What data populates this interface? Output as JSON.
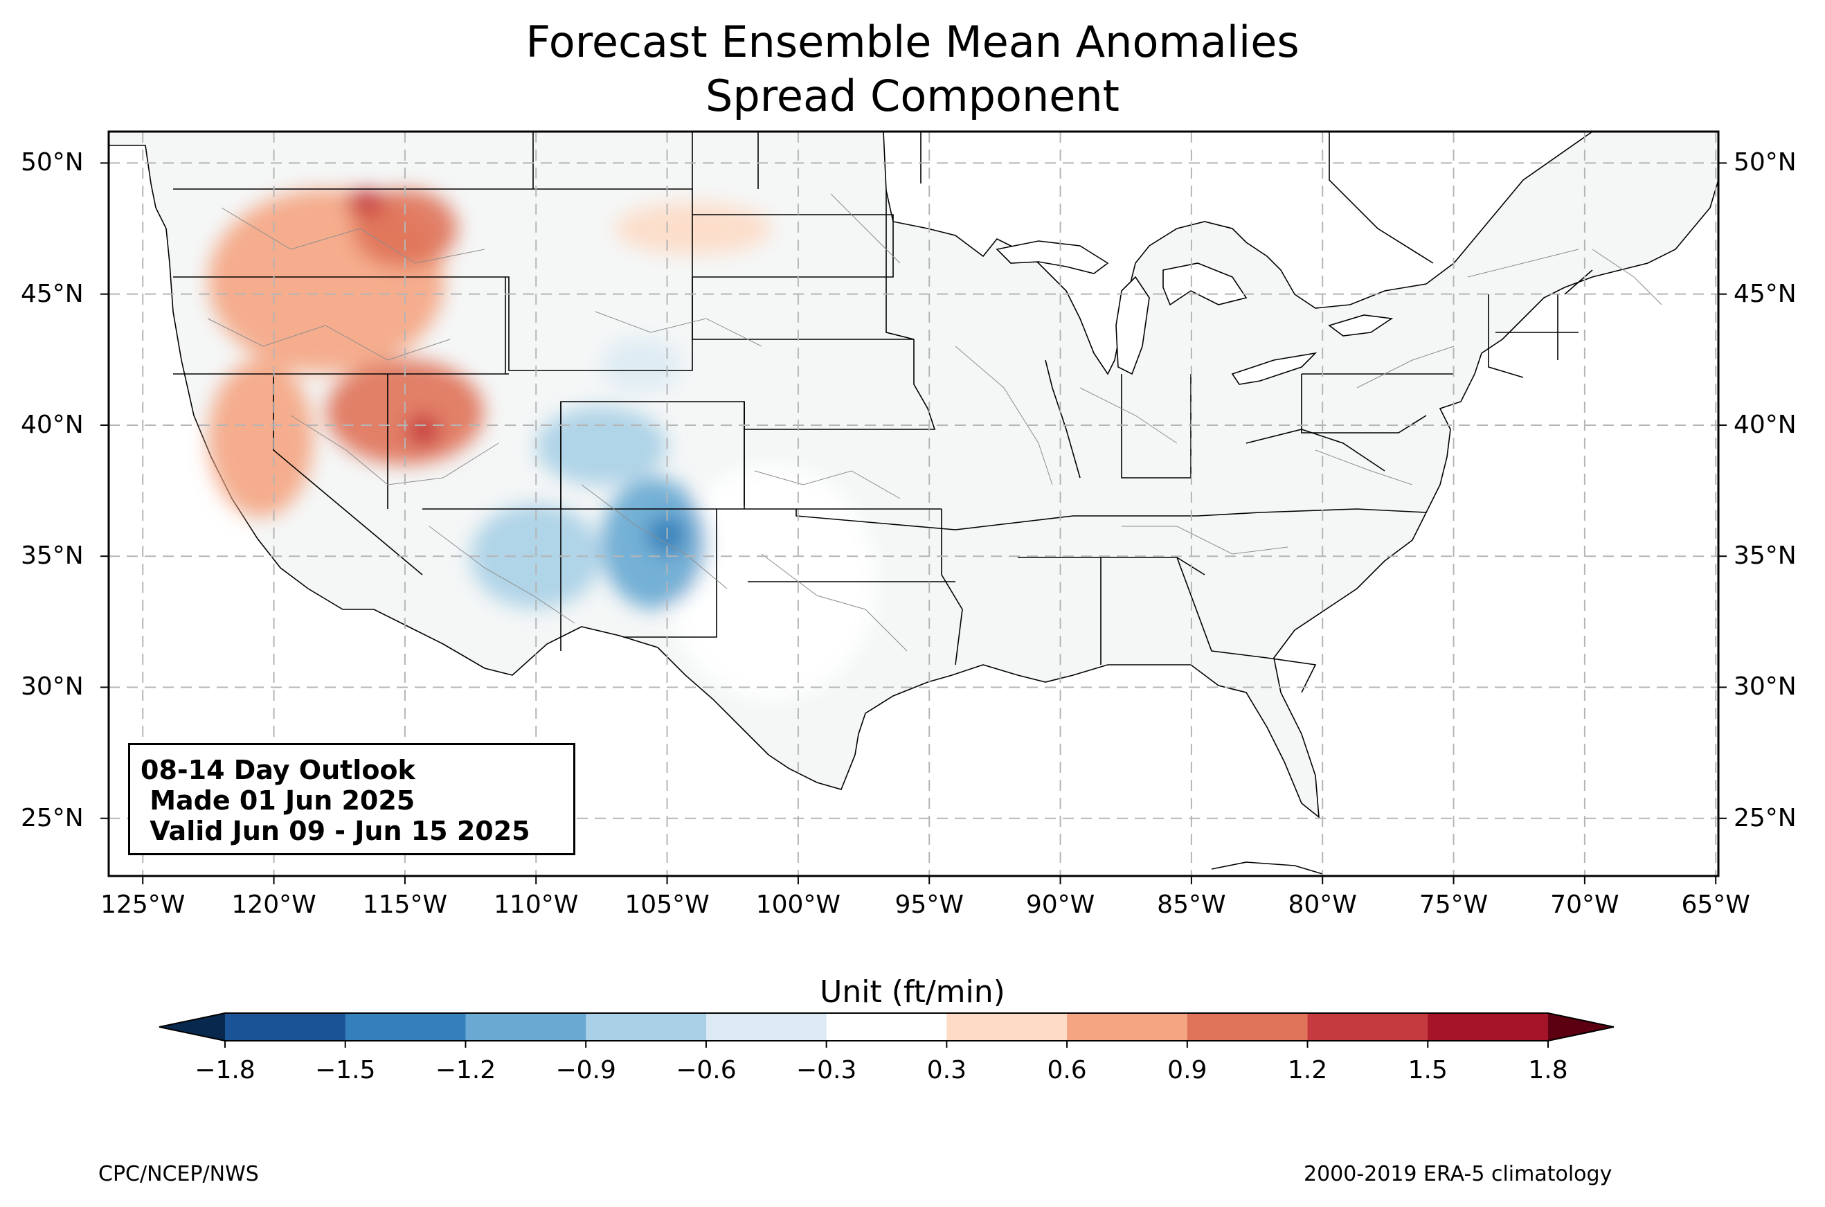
{
  "title": {
    "line1": "Forecast Ensemble Mean Anomalies",
    "line2": "Spread Component"
  },
  "map": {
    "extent_lon": [
      -126.3,
      -64.9
    ],
    "extent_lat": [
      22.8,
      51.2
    ],
    "lat_ticks": [
      "50°N",
      "45°N",
      "40°N",
      "35°N",
      "30°N",
      "25°N"
    ],
    "lat_values": [
      50,
      45,
      40,
      35,
      30,
      25
    ],
    "lon_ticks": [
      "125°W",
      "120°W",
      "115°W",
      "110°W",
      "105°W",
      "100°W",
      "95°W",
      "90°W",
      "85°W",
      "80°W",
      "75°W",
      "70°W",
      "65°W"
    ],
    "lon_values": [
      -125,
      -120,
      -115,
      -110,
      -105,
      -100,
      -95,
      -90,
      -85,
      -80,
      -75,
      -70,
      -65
    ],
    "gridlines": true,
    "anomaly_regions": [
      {
        "name": "pacific-northwest-positive",
        "level": 0.6,
        "lon": -118,
        "lat": 45.5,
        "lon_span": 9,
        "lat_span": 7
      },
      {
        "name": "idaho-montana-positive",
        "level": 0.9,
        "lon": -115,
        "lat": 47.5,
        "lon_span": 4,
        "lat_span": 3
      },
      {
        "name": "montana-max-positive",
        "level": 1.2,
        "lon": -116.5,
        "lat": 48.5,
        "lon_span": 1.5,
        "lat_span": 1
      },
      {
        "name": "nevada-utah-positive",
        "level": 0.9,
        "lon": -115,
        "lat": 40.5,
        "lon_span": 6,
        "lat_span": 4
      },
      {
        "name": "utah-max-positive",
        "level": 1.2,
        "lon": -114.3,
        "lat": 39.8,
        "lon_span": 1.2,
        "lat_span": 1.2
      },
      {
        "name": "california-positive",
        "level": 0.6,
        "lon": -120.5,
        "lat": 39.5,
        "lon_span": 4,
        "lat_span": 6
      },
      {
        "name": "dakotas-positive",
        "level": 0.3,
        "lon": -104,
        "lat": 47.5,
        "lon_span": 6,
        "lat_span": 2
      },
      {
        "name": "wyoming-negative",
        "level": -0.6,
        "lon": -106,
        "lat": 42.3,
        "lon_span": 3,
        "lat_span": 2
      },
      {
        "name": "colorado-utah-negative",
        "level": -0.9,
        "lon": -107.5,
        "lat": 39.2,
        "lon_span": 5,
        "lat_span": 3
      },
      {
        "name": "arizona-negative",
        "level": -0.9,
        "lon": -110,
        "lat": 35,
        "lon_span": 5,
        "lat_span": 4
      },
      {
        "name": "new-mexico-negative",
        "level": -1.2,
        "lon": -105.5,
        "lat": 35.5,
        "lon_span": 4,
        "lat_span": 5
      },
      {
        "name": "new-mexico-max-negative",
        "level": -1.5,
        "lon": -105,
        "lat": 35.8,
        "lon_span": 1.5,
        "lat_span": 1.5
      },
      {
        "name": "plains-texas-negative",
        "level": -0.3,
        "lon": -101,
        "lat": 34,
        "lon_span": 8,
        "lat_span": 9
      }
    ]
  },
  "outlook_box": {
    "line1": "08-14 Day Outlook",
    "line2": " Made 01 Jun 2025",
    "line3": " Valid Jun 09 - Jun 15 2025"
  },
  "colorbar": {
    "label": "Unit (ft/min)",
    "ticks": [
      "−1.8",
      "−1.5",
      "−1.2",
      "−0.9",
      "−0.6",
      "−0.3",
      "0.3",
      "0.6",
      "0.9",
      "1.2",
      "1.5",
      "1.8"
    ],
    "colors": [
      "#1a5496",
      "#3480bb",
      "#69a9d2",
      "#a9d0e6",
      "#dbeaf3",
      "#ffffff",
      "#fddbc7",
      "#f4a683",
      "#e0745a",
      "#c43a3e",
      "#a51428"
    ],
    "under_color": "#08284d",
    "over_color": "#5c0011"
  },
  "footer": {
    "left": "CPC/NCEP/NWS",
    "right": "2000-2019 ERA-5 climatology"
  }
}
